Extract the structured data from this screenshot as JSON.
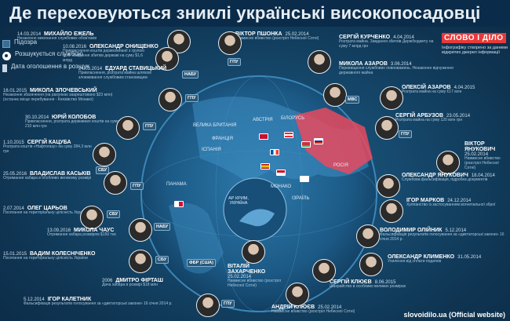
{
  "title": "Де переховуються зниклі українські високопосадовці",
  "legend": {
    "items": [
      {
        "label": "Підозра"
      },
      {
        "label": "Розшукується службою"
      },
      {
        "label": "Дата оголошення в розшук"
      }
    ]
  },
  "brand": {
    "logo": "СЛОВО І ДІЛО",
    "tagline": "Інфографіку створено за даними відкритих джерел інформації"
  },
  "source": "slovoidilo.ua (Official website)",
  "map_labels": {
    "greatbritain": "ВЕЛИКА БРИТАНІЯ",
    "france": "ФРАНЦІЯ",
    "spain": "ІСПАНІЯ",
    "austria": "АВСТРІЯ",
    "belarus": "БІЛОРУСЬ",
    "russia": "РОСІЯ",
    "monaco": "МОНАКО",
    "israel": "ІЗРАЇЛЬ",
    "panama": "ПАНАМА",
    "crimea": "АР КРИМ, УКРАЇНА"
  },
  "left_entries": [
    {
      "name": "МИХАЙЛО ЕЖЕЛЬ",
      "date": "14.03.2014",
      "desc": "Незаконне виконання службових обов'язків",
      "agency": ""
    },
    {
      "name": "ОЛЕКСАНДР ОНИЩЕНКО",
      "date": "10.08.2016",
      "desc": "Привласнення коштів держкомпанії з групою осіб. Завдання збитків державі на суму $1,6 млрд",
      "agency": "НАБУ"
    },
    {
      "name": "ЕДУАРД СТАВИЦЬКИЙ",
      "date": "24.03.2014",
      "desc": "Привласнення, розтрата майна шляхом зловживання службовим становищем",
      "agency": ""
    },
    {
      "name": "МИКОЛА ЗЛОЧЕВСЬКИЙ",
      "date": "16.01.2015",
      "desc": "Незаконне збагачення (на рахунках заарештовано $23 млн) (останнє місце перебування - Князівство Монако)",
      "agency": "ГПУ"
    },
    {
      "name": "ЮРІЙ КОЛОБОВ",
      "date": "30.10.2014",
      "desc": "Привласнення, розтрата державних коштів на суму 210 млн грн",
      "agency": "ГПУ"
    },
    {
      "name": "СЕРГІЙ КАЦУБА",
      "date": "1.10.2015",
      "desc": "Розтрата коштів «Нафтогазу» на суму 284,3 млн грн",
      "agency": "СБУ"
    },
    {
      "name": "ВЛАДИСЛАВ КАСЬКІВ",
      "date": "25.05.2016",
      "desc": "Отримання хабара в особливо великому розмірі",
      "agency": "ГПУ"
    },
    {
      "name": "ОЛЕГ ЦАРЬОВ",
      "date": "2.07.2014",
      "desc": "Посягання на територіальну цілісність України",
      "agency": "СБУ"
    },
    {
      "name": "МИКОЛА ЧАУС",
      "date": "13.09.2016",
      "desc": "Отримання хабара розміром $150 тис",
      "agency": "НАБУ"
    },
    {
      "name": "ВАДИМ КОЛЕСНІЧЕНКО",
      "date": "15.01.2015",
      "desc": "Посягання на територіальну цілісність України",
      "agency": "СБУ"
    },
    {
      "name": "ДМИТРО ФІРТАШ",
      "date": "2006",
      "desc": "Дача хабара в розмірі $18 млн",
      "agency": "ФБР (США)"
    },
    {
      "name": "ІГОР КАЛЕТНИК",
      "date": "5.12.2014",
      "desc": "Фальсифікація результатів голосування за «диктаторські закони» 16 січня 2014 р.",
      "agency": "ГПУ"
    }
  ],
  "right_entries": [
    {
      "name": "ВІКТОР ПШОНКА",
      "date": "25.02.2014",
      "desc": "Навмисне вбивство (розстріл Небесної Сотні)",
      "agency": "ГПУ"
    },
    {
      "name": "СЕРГІЙ КУРЧЕНКО",
      "date": "4.04.2014",
      "desc": "Розтрата майна. Завдання збитків Держбюджету на суму 7 млрд грн",
      "agency": "МВС"
    },
    {
      "name": "МИКОЛА АЗАРОВ",
      "date": "3.06.2014",
      "desc": "Перевищення службових повноважень. Незаконне відчуження державного майна",
      "agency": "МВС"
    },
    {
      "name": "ОЛЕКСІЙ АЗАРОВ",
      "date": "4.04.2015",
      "desc": "Розтрата майна на суму €17 млн",
      "agency": "МВС"
    },
    {
      "name": "СЕРГІЙ АРБУЗОВ",
      "date": "23.05.2014",
      "desc": "Розтрата майна на суму 120 млн грн",
      "agency": "ГПУ"
    },
    {
      "name": "ВІКТОР ЯНУКОВИЧ",
      "date": "25.02.2014",
      "desc": "Навмисне вбивство (розстріл Небесної Сотні)",
      "agency": "ГПУ"
    },
    {
      "name": "ОЛЕКСАНДР ЯНУКОВИЧ",
      "date": "18.04.2014",
      "desc": "Службова фальсифікація, підробка документів",
      "agency": "ГПУ"
    },
    {
      "name": "ІГОР МАРКОВ",
      "date": "24.12.2014",
      "desc": "Хуліганство із застосуванням вогнепальної зброї",
      "agency": "МВС"
    },
    {
      "name": "ВОЛОДИМИР ОЛІЙНИК",
      "date": "5.12.2014",
      "desc": "Фальсифікація результатів голосування за «диктаторські закони» 16 січня 2014 р.",
      "agency": "ГПУ"
    },
    {
      "name": "ОЛЕКСАНДР КЛИМЕНКО",
      "date": "31.05.2014",
      "desc": "Ухилення від сплати податків",
      "agency": "ГПУ"
    },
    {
      "name": "СЕРГІЙ КЛЮЄВ",
      "date": "8.06.2015",
      "desc": "Шахрайство в особливо великих розмірах",
      "agency": "ГПУ"
    },
    {
      "name": "ВІТАЛІЙ ЗАХАРЧЕНКО",
      "date": "25.02.2014",
      "desc": "Навмисне вбивство (розстріл Небесної Сотні)",
      "agency": "ГПУ"
    },
    {
      "name": "АНДРІЙ КЛЮЄВ",
      "date": "25.02.2014",
      "desc": "Навмисне вбивство (розстріл Небесної Сотні)",
      "agency": "ГПУ"
    }
  ],
  "colors": {
    "highlight": "#e84a5f",
    "background": "#164a6e"
  }
}
